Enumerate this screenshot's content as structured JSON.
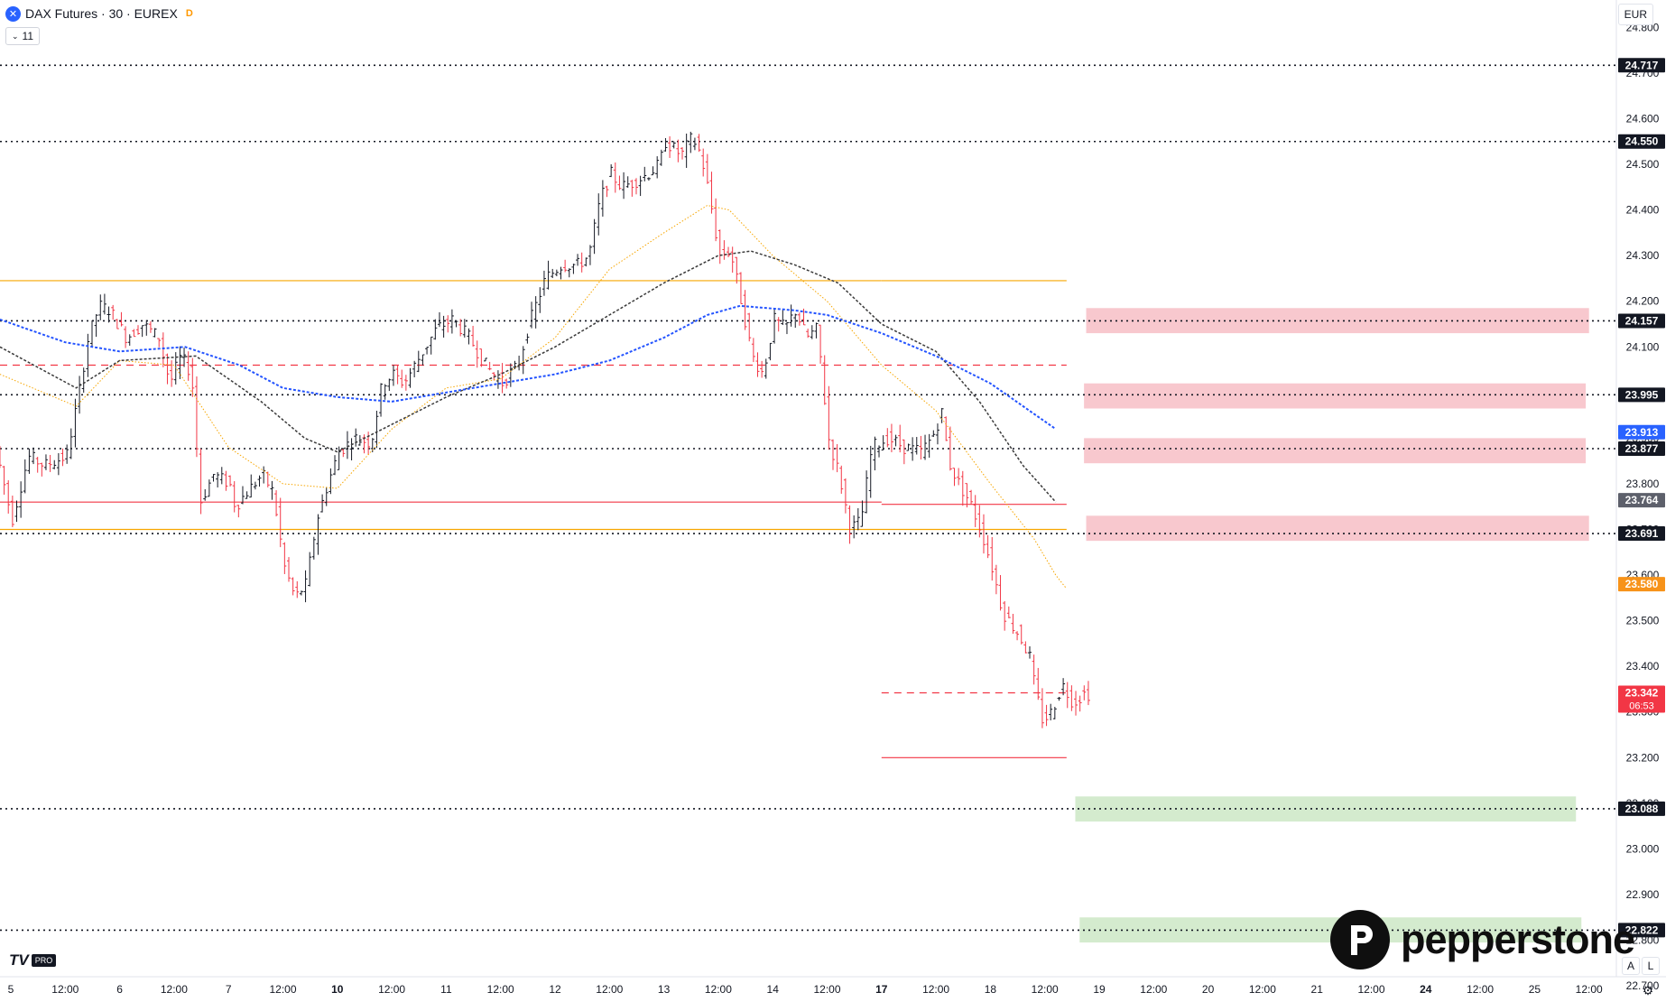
{
  "header": {
    "symbol_icon": "x-icon",
    "title": "DAX Futures · 30 · EUREX",
    "badge": "D",
    "indicator_count": "11",
    "currency": "EUR"
  },
  "footer": {
    "tv_logo": "TV",
    "tv_pro": "PRO",
    "brand": "pepperstone",
    "btn_auto": "A",
    "btn_log": "L"
  },
  "chart_data": {
    "type": "candlestick",
    "title": "DAX Futures · 30 · EUREX",
    "currency": "EUR",
    "ylim": [
      22.72,
      24.86
    ],
    "y_ticks": [
      "24.800",
      "24.700",
      "24.600",
      "24.500",
      "24.400",
      "24.300",
      "24.200",
      "24.100",
      "24.000",
      "23.900",
      "23.800",
      "23.700",
      "23.600",
      "23.500",
      "23.400",
      "23.300",
      "23.200",
      "23.100",
      "23.000",
      "22.900",
      "22.800",
      "22.700"
    ],
    "x_ticks": [
      {
        "label": "5",
        "session": 0,
        "bold": false
      },
      {
        "label": "12:00",
        "session": 0.5,
        "bold": false
      },
      {
        "label": "6",
        "session": 1,
        "bold": false
      },
      {
        "label": "12:00",
        "session": 1.5,
        "bold": false
      },
      {
        "label": "7",
        "session": 2,
        "bold": false
      },
      {
        "label": "12:00",
        "session": 2.5,
        "bold": false
      },
      {
        "label": "10",
        "session": 3,
        "bold": true
      },
      {
        "label": "12:00",
        "session": 3.5,
        "bold": false
      },
      {
        "label": "11",
        "session": 4,
        "bold": false
      },
      {
        "label": "12:00",
        "session": 4.5,
        "bold": false
      },
      {
        "label": "12",
        "session": 5,
        "bold": false
      },
      {
        "label": "12:00",
        "session": 5.5,
        "bold": false
      },
      {
        "label": "13",
        "session": 6,
        "bold": false
      },
      {
        "label": "12:00",
        "session": 6.5,
        "bold": false
      },
      {
        "label": "14",
        "session": 7,
        "bold": false
      },
      {
        "label": "12:00",
        "session": 7.5,
        "bold": false
      },
      {
        "label": "17",
        "session": 8,
        "bold": true
      },
      {
        "label": "12:00",
        "session": 8.5,
        "bold": false
      },
      {
        "label": "18",
        "session": 9,
        "bold": false
      },
      {
        "label": "12:00",
        "session": 9.5,
        "bold": false
      },
      {
        "label": "19",
        "session": 10,
        "bold": false
      },
      {
        "label": "12:00",
        "session": 10.5,
        "bold": false
      },
      {
        "label": "20",
        "session": 11,
        "bold": false
      },
      {
        "label": "12:00",
        "session": 11.5,
        "bold": false
      },
      {
        "label": "21",
        "session": 12,
        "bold": false
      },
      {
        "label": "12:00",
        "session": 12.5,
        "bold": false
      },
      {
        "label": "24",
        "session": 13,
        "bold": true
      },
      {
        "label": "12:00",
        "session": 13.5,
        "bold": false
      },
      {
        "label": "25",
        "session": 14,
        "bold": false
      },
      {
        "label": "12:00",
        "session": 14.5,
        "bold": false
      }
    ],
    "price_path": [
      [
        -0.1,
        23.88
      ],
      [
        0.05,
        23.72
      ],
      [
        0.2,
        23.86
      ],
      [
        0.35,
        23.84
      ],
      [
        0.55,
        23.86
      ],
      [
        0.65,
        23.98
      ],
      [
        0.75,
        24.12
      ],
      [
        0.85,
        24.19
      ],
      [
        0.95,
        24.18
      ],
      [
        1.1,
        24.12
      ],
      [
        1.25,
        24.15
      ],
      [
        1.4,
        24.12
      ],
      [
        1.5,
        24.02
      ],
      [
        1.6,
        24.08
      ],
      [
        1.7,
        24.04
      ],
      [
        1.78,
        23.76
      ],
      [
        1.9,
        23.82
      ],
      [
        2.05,
        23.8
      ],
      [
        2.1,
        23.75
      ],
      [
        2.2,
        23.78
      ],
      [
        2.35,
        23.82
      ],
      [
        2.45,
        23.78
      ],
      [
        2.55,
        23.62
      ],
      [
        2.65,
        23.55
      ],
      [
        2.75,
        23.58
      ],
      [
        2.85,
        23.72
      ],
      [
        2.95,
        23.8
      ],
      [
        3.05,
        23.87
      ],
      [
        3.2,
        23.9
      ],
      [
        3.35,
        23.89
      ],
      [
        3.45,
        24.02
      ],
      [
        3.55,
        24.04
      ],
      [
        3.65,
        24.02
      ],
      [
        3.8,
        24.08
      ],
      [
        3.95,
        24.14
      ],
      [
        4.1,
        24.16
      ],
      [
        4.25,
        24.12
      ],
      [
        4.4,
        24.06
      ],
      [
        4.55,
        24.02
      ],
      [
        4.7,
        24.06
      ],
      [
        4.8,
        24.15
      ],
      [
        4.95,
        24.25
      ],
      [
        5.1,
        24.28
      ],
      [
        5.25,
        24.28
      ],
      [
        5.35,
        24.3
      ],
      [
        5.45,
        24.42
      ],
      [
        5.55,
        24.48
      ],
      [
        5.65,
        24.45
      ],
      [
        5.75,
        24.46
      ],
      [
        5.9,
        24.48
      ],
      [
        6.0,
        24.5
      ],
      [
        6.05,
        24.55
      ],
      [
        6.2,
        24.52
      ],
      [
        6.3,
        24.56
      ],
      [
        6.38,
        24.52
      ],
      [
        6.45,
        24.44
      ],
      [
        6.55,
        24.3
      ],
      [
        6.65,
        24.31
      ],
      [
        6.75,
        24.2
      ],
      [
        6.85,
        24.08
      ],
      [
        6.95,
        24.04
      ],
      [
        7.05,
        24.16
      ],
      [
        7.15,
        24.14
      ],
      [
        7.25,
        24.18
      ],
      [
        7.35,
        24.12
      ],
      [
        7.45,
        24.14
      ],
      [
        7.55,
        23.9
      ],
      [
        7.65,
        23.82
      ],
      [
        7.75,
        23.7
      ],
      [
        7.85,
        23.72
      ],
      [
        7.95,
        23.88
      ],
      [
        8.1,
        23.9
      ],
      [
        8.25,
        23.88
      ],
      [
        8.4,
        23.87
      ],
      [
        8.5,
        23.9
      ],
      [
        8.6,
        23.96
      ],
      [
        8.65,
        23.85
      ],
      [
        8.75,
        23.8
      ],
      [
        8.85,
        23.76
      ],
      [
        8.95,
        23.7
      ],
      [
        9.05,
        23.62
      ],
      [
        9.15,
        23.52
      ],
      [
        9.3,
        23.47
      ],
      [
        9.4,
        23.42
      ],
      [
        9.45,
        23.35
      ],
      [
        9.52,
        23.28
      ],
      [
        9.6,
        23.3
      ],
      [
        9.7,
        23.36
      ],
      [
        9.8,
        23.32
      ],
      [
        9.9,
        23.34
      ]
    ],
    "series": [
      {
        "name": "",
        "color": "#f7a600",
        "dash": "1.5 2",
        "width": 1,
        "points": [
          [
            -0.1,
            24.04
          ],
          [
            0.6,
            23.97
          ],
          [
            1.0,
            24.07
          ],
          [
            1.5,
            24.06
          ],
          [
            2.0,
            23.88
          ],
          [
            2.5,
            23.8
          ],
          [
            3.0,
            23.79
          ],
          [
            3.5,
            23.92
          ],
          [
            4.0,
            24.01
          ],
          [
            4.5,
            24.03
          ],
          [
            5.0,
            24.12
          ],
          [
            5.5,
            24.27
          ],
          [
            6.0,
            24.35
          ],
          [
            6.4,
            24.41
          ],
          [
            6.6,
            24.4
          ],
          [
            7.0,
            24.3
          ],
          [
            7.5,
            24.2
          ],
          [
            8.0,
            24.06
          ],
          [
            8.5,
            23.96
          ],
          [
            9.0,
            23.8
          ],
          [
            9.4,
            23.68
          ],
          [
            9.6,
            23.6
          ],
          [
            9.7,
            23.57
          ]
        ]
      },
      {
        "name": "",
        "color": "#3a3a3a",
        "dash": "3 2",
        "width": 1.5,
        "points": [
          [
            -0.1,
            24.1
          ],
          [
            0.6,
            24.01
          ],
          [
            1.0,
            24.07
          ],
          [
            1.7,
            24.08
          ],
          [
            2.3,
            23.98
          ],
          [
            2.7,
            23.9
          ],
          [
            3.0,
            23.87
          ],
          [
            3.5,
            23.93
          ],
          [
            4.0,
            23.99
          ],
          [
            4.5,
            24.04
          ],
          [
            5.0,
            24.1
          ],
          [
            5.5,
            24.17
          ],
          [
            6.0,
            24.24
          ],
          [
            6.5,
            24.3
          ],
          [
            6.8,
            24.31
          ],
          [
            7.2,
            24.28
          ],
          [
            7.6,
            24.24
          ],
          [
            8.0,
            24.15
          ],
          [
            8.5,
            24.09
          ],
          [
            8.9,
            23.98
          ],
          [
            9.3,
            23.84
          ],
          [
            9.6,
            23.76
          ]
        ]
      },
      {
        "name": "",
        "color": "#2454ff",
        "dash": "3 2",
        "width": 2,
        "points": [
          [
            -0.1,
            24.16
          ],
          [
            0.5,
            24.11
          ],
          [
            1.0,
            24.09
          ],
          [
            1.6,
            24.1
          ],
          [
            2.1,
            24.06
          ],
          [
            2.5,
            24.01
          ],
          [
            3.0,
            23.99
          ],
          [
            3.5,
            23.98
          ],
          [
            4.0,
            24.0
          ],
          [
            4.5,
            24.02
          ],
          [
            5.0,
            24.04
          ],
          [
            5.5,
            24.07
          ],
          [
            6.0,
            24.12
          ],
          [
            6.4,
            24.17
          ],
          [
            6.7,
            24.19
          ],
          [
            7.2,
            24.18
          ],
          [
            7.5,
            24.17
          ],
          [
            8.0,
            24.13
          ],
          [
            8.5,
            24.08
          ],
          [
            9.0,
            24.02
          ],
          [
            9.3,
            23.97
          ],
          [
            9.6,
            23.92
          ]
        ]
      }
    ],
    "h_lines": [
      {
        "price": 24.717,
        "color": "#131722",
        "style": "dotted",
        "from": "start"
      },
      {
        "price": 24.55,
        "color": "#131722",
        "style": "dotted",
        "from": "start"
      },
      {
        "price": 24.157,
        "color": "#131722",
        "style": "dotted",
        "from": "start"
      },
      {
        "price": 23.995,
        "color": "#131722",
        "style": "dotted",
        "from": "start"
      },
      {
        "price": 23.877,
        "color": "#131722",
        "style": "dotted",
        "from": "start"
      },
      {
        "price": 23.691,
        "color": "#131722",
        "style": "dotted",
        "from": "start"
      },
      {
        "price": 23.088,
        "color": "#131722",
        "style": "dotted",
        "from": "start"
      },
      {
        "price": 22.822,
        "color": "#131722",
        "style": "dotted",
        "from": "start"
      },
      {
        "price": 24.245,
        "color": "#f7a600",
        "style": "solid",
        "from": "start",
        "to_session": 8.0
      },
      {
        "price": 24.245,
        "color": "#f7a600",
        "style": "solid",
        "from_session": 8.0,
        "to_session": 9.7
      },
      {
        "price": 24.06,
        "color": "#f23645",
        "style": "dashed",
        "from": "start",
        "to_session": 9.7
      },
      {
        "price": 23.76,
        "color": "#f23645",
        "style": "solid",
        "from": "start",
        "to_session": 8.0
      },
      {
        "price": 23.755,
        "color": "#f23645",
        "style": "solid",
        "from_session": 8.0,
        "to_session": 9.7
      },
      {
        "price": 23.7,
        "color": "#f7a600",
        "style": "solid",
        "from": "start",
        "to_session": 9.7
      },
      {
        "price": 23.342,
        "color": "#f23645",
        "style": "dashed",
        "from_session": 8.0,
        "to_session": 9.7
      },
      {
        "price": 23.2,
        "color": "#f23645",
        "style": "solid",
        "from_session": 8.0,
        "to_session": 9.7
      }
    ],
    "zones": [
      {
        "top": 24.185,
        "bottom": 24.13,
        "color": "#f7c2c9",
        "from_session": 9.88,
        "to_session": 14.5
      },
      {
        "top": 24.02,
        "bottom": 23.965,
        "color": "#f7c2c9",
        "from_session": 9.86,
        "to_session": 14.47
      },
      {
        "top": 23.9,
        "bottom": 23.845,
        "color": "#f7c2c9",
        "from_session": 9.86,
        "to_session": 14.47
      },
      {
        "top": 23.73,
        "bottom": 23.675,
        "color": "#f7c2c9",
        "from_session": 9.88,
        "to_session": 14.5
      },
      {
        "top": 23.115,
        "bottom": 23.06,
        "color": "#cfe9c9",
        "from_session": 9.78,
        "to_session": 14.38
      },
      {
        "top": 22.85,
        "bottom": 22.795,
        "color": "#cfe9c9",
        "from_session": 9.82,
        "to_session": 14.43
      }
    ],
    "price_labels": [
      {
        "text": "24.717",
        "price": 24.717,
        "bg": "#131722",
        "fg": "#ffffff"
      },
      {
        "text": "24.550",
        "price": 24.55,
        "bg": "#131722",
        "fg": "#ffffff"
      },
      {
        "text": "24.157",
        "price": 24.157,
        "bg": "#131722",
        "fg": "#ffffff"
      },
      {
        "text": "23.995",
        "price": 23.995,
        "bg": "#131722",
        "fg": "#ffffff"
      },
      {
        "text": "23.913",
        "price": 23.913,
        "bg": "#2962ff",
        "fg": "#ffffff"
      },
      {
        "text": "23.877",
        "price": 23.877,
        "bg": "#131722",
        "fg": "#ffffff"
      },
      {
        "text": "23.764",
        "price": 23.764,
        "bg": "#5d606b",
        "fg": "#ffffff"
      },
      {
        "text": "23.691",
        "price": 23.691,
        "bg": "#131722",
        "fg": "#ffffff"
      },
      {
        "text": "23.580",
        "price": 23.58,
        "bg": "#f7931a",
        "fg": "#ffffff"
      },
      {
        "text": "23.342",
        "price": 23.342,
        "bg": "#f23645",
        "fg": "#ffffff",
        "sub": "06:53"
      },
      {
        "text": "23.088",
        "price": 23.088,
        "bg": "#131722",
        "fg": "#ffffff"
      },
      {
        "text": "22.822",
        "price": 22.822,
        "bg": "#131722",
        "fg": "#ffffff"
      }
    ]
  }
}
